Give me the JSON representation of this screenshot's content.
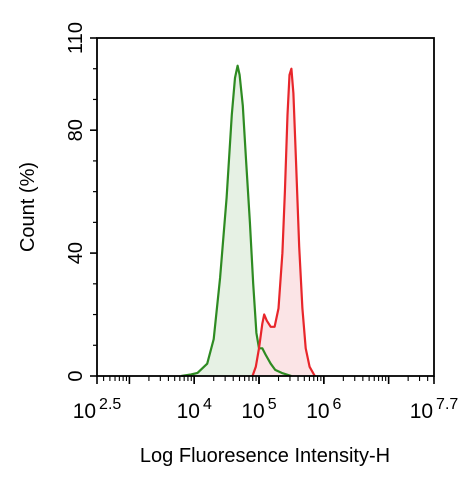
{
  "chart_data": {
    "type": "area",
    "title": "",
    "xlabel": "Log Fluoresence Intensity-H",
    "ylabel": "Count  (%)",
    "x_scale": "log10",
    "xlim": [
      2.5,
      7.7
    ],
    "ylim": [
      0,
      110
    ],
    "x_ticks": [
      {
        "base": "10",
        "exp": "2.5",
        "value": 2.5
      },
      {
        "base": "10",
        "exp": "4",
        "value": 4
      },
      {
        "base": "10",
        "exp": "5",
        "value": 5
      },
      {
        "base": "10",
        "exp": "6",
        "value": 6
      },
      {
        "base": "10",
        "exp": "7.7",
        "value": 7.7
      }
    ],
    "y_ticks": [
      0,
      40,
      80,
      110
    ],
    "grid": false,
    "legend": "none",
    "series": [
      {
        "color": "#2e8b22",
        "fill": "#e6f1e4",
        "points": [
          [
            3.8,
            0
          ],
          [
            3.95,
            0.5
          ],
          [
            4.05,
            1
          ],
          [
            4.2,
            4
          ],
          [
            4.3,
            12
          ],
          [
            4.4,
            32
          ],
          [
            4.5,
            58
          ],
          [
            4.58,
            85
          ],
          [
            4.63,
            97
          ],
          [
            4.67,
            101
          ],
          [
            4.7,
            98
          ],
          [
            4.75,
            88
          ],
          [
            4.8,
            70
          ],
          [
            4.86,
            50
          ],
          [
            4.91,
            30
          ],
          [
            4.96,
            14
          ],
          [
            5.0,
            9
          ],
          [
            5.05,
            9
          ],
          [
            5.1,
            7
          ],
          [
            5.18,
            4
          ],
          [
            5.25,
            2
          ],
          [
            5.35,
            1
          ],
          [
            5.5,
            0
          ]
        ]
      },
      {
        "color": "#e8262b",
        "fill": "#fbe4e6",
        "points": [
          [
            4.9,
            0
          ],
          [
            4.95,
            3
          ],
          [
            5.0,
            9
          ],
          [
            5.05,
            17
          ],
          [
            5.08,
            20
          ],
          [
            5.12,
            18
          ],
          [
            5.18,
            16
          ],
          [
            5.24,
            16
          ],
          [
            5.3,
            22
          ],
          [
            5.36,
            40
          ],
          [
            5.4,
            60
          ],
          [
            5.44,
            85
          ],
          [
            5.47,
            98
          ],
          [
            5.5,
            100
          ],
          [
            5.53,
            92
          ],
          [
            5.57,
            70
          ],
          [
            5.62,
            42
          ],
          [
            5.67,
            22
          ],
          [
            5.72,
            9
          ],
          [
            5.78,
            3
          ],
          [
            5.86,
            0
          ]
        ]
      }
    ]
  }
}
